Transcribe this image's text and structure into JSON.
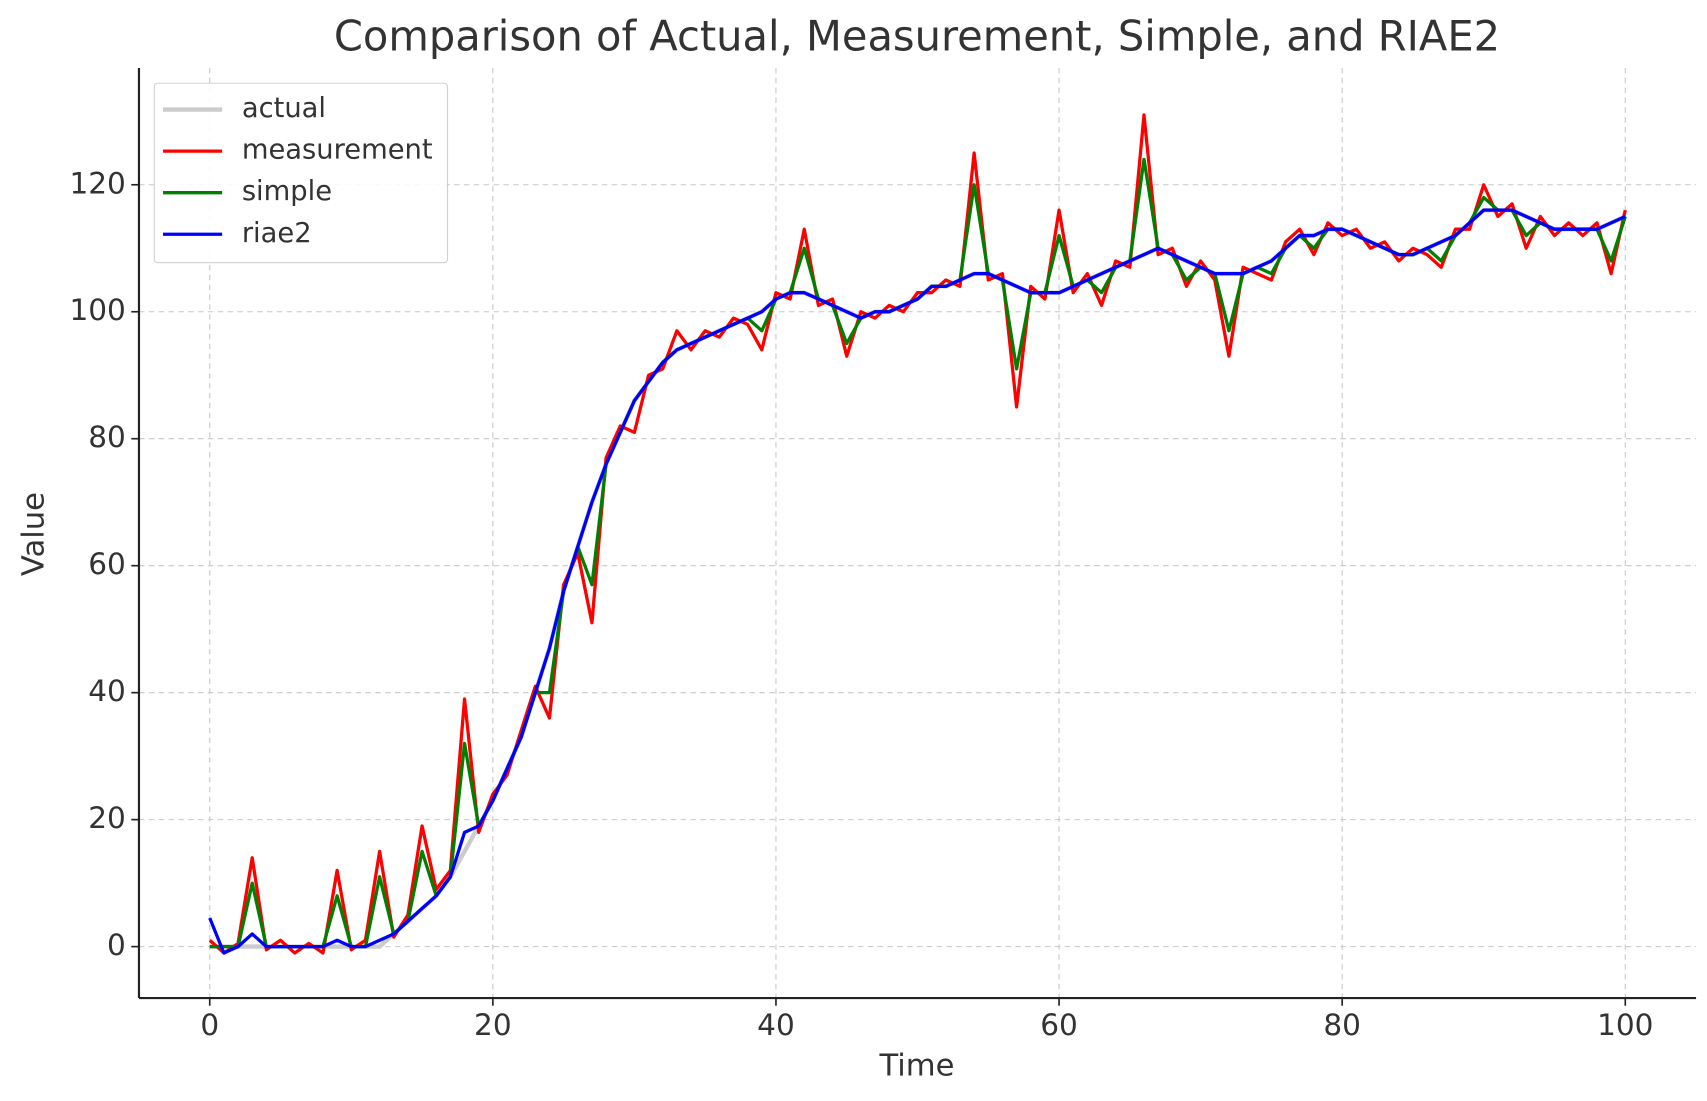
{
  "chart_data": {
    "type": "line",
    "title": "Comparison of Actual, Measurement, Simple, and RIAE2",
    "x_label": "Time",
    "y_label": "Value",
    "x": [
      0,
      1,
      2,
      3,
      4,
      5,
      6,
      7,
      8,
      9,
      10,
      11,
      12,
      13,
      14,
      15,
      16,
      17,
      18,
      19,
      20,
      21,
      22,
      23,
      24,
      25,
      26,
      27,
      28,
      29,
      30,
      31,
      32,
      33,
      34,
      35,
      36,
      37,
      38,
      39,
      40,
      41,
      42,
      43,
      44,
      45,
      46,
      47,
      48,
      49,
      50,
      51,
      52,
      53,
      54,
      55,
      56,
      57,
      58,
      59,
      60,
      61,
      62,
      63,
      64,
      65,
      66,
      67,
      68,
      69,
      70,
      71,
      72,
      73,
      74,
      75,
      76,
      77,
      78,
      79,
      80,
      81,
      82,
      83,
      84,
      85,
      86,
      87,
      88,
      89,
      90,
      91,
      92,
      93,
      94,
      95,
      96,
      97,
      98,
      99,
      100
    ],
    "series": [
      {
        "name": "actual",
        "color": "#cccccc",
        "values": [
          0,
          0,
          0,
          0,
          0,
          0,
          0,
          0,
          0,
          0,
          0,
          0,
          0,
          2,
          4,
          6,
          8,
          11,
          15,
          19,
          23,
          28,
          33,
          40,
          47,
          56,
          63,
          70,
          76,
          81,
          86,
          89,
          92,
          94,
          95,
          96,
          97,
          98,
          99,
          100,
          102,
          103,
          103,
          102,
          101,
          100,
          99,
          100,
          100,
          101,
          102,
          104,
          104,
          105,
          106,
          106,
          105,
          104,
          103,
          103,
          103,
          104,
          105,
          106,
          107,
          108,
          109,
          110,
          109,
          108,
          107,
          106,
          106,
          106,
          107,
          108,
          110,
          112,
          112,
          113,
          113,
          112,
          111,
          110,
          109,
          109,
          110,
          111,
          112,
          114,
          116,
          116,
          116,
          115,
          114,
          113,
          113,
          113,
          113,
          114,
          115
        ]
      },
      {
        "name": "measurement",
        "color": "#ff0000",
        "values": [
          1,
          -1,
          0.5,
          14,
          -0.5,
          1,
          -1,
          0.5,
          -1,
          12,
          -0.5,
          1,
          15,
          1.5,
          5,
          19,
          9,
          12,
          39,
          18,
          24,
          27,
          34,
          41,
          36,
          57,
          62,
          51,
          77,
          82,
          81,
          90,
          91,
          97,
          94,
          97,
          96,
          99,
          98,
          94,
          103,
          102,
          113,
          101,
          102,
          93,
          100,
          99,
          101,
          100,
          103,
          103,
          105,
          104,
          125,
          105,
          106,
          85,
          104,
          102,
          116,
          103,
          106,
          101,
          108,
          107,
          131,
          109,
          110,
          104,
          108,
          105,
          93,
          107,
          106,
          105,
          111,
          113,
          109,
          114,
          112,
          113,
          110,
          111,
          108,
          110,
          109,
          107,
          113,
          113,
          120,
          115,
          117,
          110,
          115,
          112,
          114,
          112,
          114,
          106,
          116
        ]
      },
      {
        "name": "simple",
        "color": "#008000",
        "values": [
          0,
          0,
          0,
          10,
          0,
          0,
          0,
          0,
          0,
          8,
          0,
          0,
          11,
          2,
          4,
          15,
          8,
          11,
          32,
          19,
          23,
          28,
          33,
          40,
          40,
          56,
          63,
          57,
          76,
          81,
          86,
          89,
          92,
          94,
          95,
          96,
          97,
          98,
          99,
          97,
          102,
          103,
          110,
          102,
          101,
          95,
          99,
          100,
          100,
          101,
          102,
          104,
          104,
          105,
          120,
          106,
          105,
          91,
          103,
          103,
          112,
          104,
          105,
          103,
          107,
          108,
          124,
          110,
          109,
          105,
          107,
          106,
          97,
          106,
          107,
          106,
          110,
          112,
          110,
          113,
          113,
          112,
          111,
          110,
          109,
          109,
          110,
          108,
          112,
          114,
          118,
          116,
          116,
          112,
          114,
          113,
          113,
          113,
          113,
          108,
          115
        ]
      },
      {
        "name": "riae2",
        "color": "#0000ff",
        "values": [
          4.5,
          -1,
          0,
          2,
          0,
          0,
          0,
          0,
          0,
          1,
          0,
          0,
          1,
          2,
          4,
          6,
          8,
          11,
          18,
          19,
          23,
          28,
          33,
          40,
          47,
          56,
          63,
          70,
          76,
          81,
          86,
          89,
          92,
          94,
          95,
          96,
          97,
          98,
          99,
          100,
          102,
          103,
          103,
          102,
          101,
          100,
          99,
          100,
          100,
          101,
          102,
          104,
          104,
          105,
          106,
          106,
          105,
          104,
          103,
          103,
          103,
          104,
          105,
          106,
          107,
          108,
          109,
          110,
          109,
          108,
          107,
          106,
          106,
          106,
          107,
          108,
          110,
          112,
          112,
          113,
          113,
          112,
          111,
          110,
          109,
          109,
          110,
          111,
          112,
          114,
          116,
          116,
          116,
          115,
          114,
          113,
          113,
          113,
          113,
          114,
          115
        ]
      }
    ],
    "xlim": [
      -5,
      105
    ],
    "ylim": [
      -8.1,
      138.4
    ],
    "xticks": [
      0,
      20,
      40,
      60,
      80,
      100
    ],
    "yticks": [
      0,
      20,
      40,
      60,
      80,
      100,
      120
    ],
    "grid": true,
    "legend": "upper left"
  }
}
